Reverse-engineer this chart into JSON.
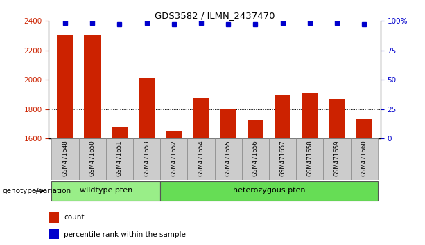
{
  "title": "GDS3582 / ILMN_2437470",
  "samples": [
    "GSM471648",
    "GSM471650",
    "GSM471651",
    "GSM471653",
    "GSM471652",
    "GSM471654",
    "GSM471655",
    "GSM471656",
    "GSM471657",
    "GSM471658",
    "GSM471659",
    "GSM471660"
  ],
  "counts": [
    2305,
    2300,
    1680,
    2015,
    1645,
    1875,
    1800,
    1725,
    1895,
    1905,
    1870,
    1730
  ],
  "percentile_ranks": [
    98,
    98,
    97,
    98,
    97,
    98,
    97,
    97,
    98,
    98,
    98,
    97
  ],
  "ylim_left": [
    1600,
    2400
  ],
  "ylim_right": [
    0,
    100
  ],
  "yticks_left": [
    1600,
    1800,
    2000,
    2200,
    2400
  ],
  "yticks_right": [
    0,
    25,
    50,
    75,
    100
  ],
  "bar_color": "#cc2200",
  "dot_color": "#0000cc",
  "background_color": "#ffffff",
  "groups": [
    {
      "label": "wildtype pten",
      "start": 0,
      "end": 3,
      "color": "#99ee88"
    },
    {
      "label": "heterozygous pten",
      "start": 4,
      "end": 11,
      "color": "#66dd55"
    }
  ],
  "group_label": "genotype/variation",
  "legend_count_label": "count",
  "legend_percentile_label": "percentile rank within the sample",
  "tick_bg_color": "#cccccc",
  "bar_width": 0.6
}
